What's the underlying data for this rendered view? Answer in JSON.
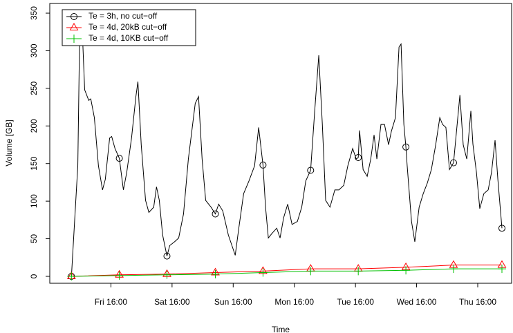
{
  "chart_data": {
    "type": "line",
    "xlabel": "Time",
    "ylabel": "Volume [GB]",
    "xlim": [
      0,
      181.3
    ],
    "ylim": [
      -9.2,
      362.9
    ],
    "xticks": [
      {
        "value": 24,
        "label": "Fri 16:00"
      },
      {
        "value": 48,
        "label": "Sat 16:00"
      },
      {
        "value": 72,
        "label": "Sun 16:00"
      },
      {
        "value": 96,
        "label": "Mon 16:00"
      },
      {
        "value": 120,
        "label": "Tue 16:00"
      },
      {
        "value": 144,
        "label": "Wed 16:00"
      },
      {
        "value": 168,
        "label": "Thu 16:00"
      }
    ],
    "yticks": [
      0,
      50,
      100,
      150,
      200,
      250,
      300,
      350
    ],
    "legend": "topleft",
    "series": [
      {
        "name": "Te = 3h, no cut−off",
        "color": "#000000",
        "marker": "circle",
        "x": [
          8.5,
          11.0,
          11.8,
          12.6,
          13.7,
          15.3,
          16.1,
          17.5,
          19.1,
          20.7,
          21.8,
          23.5,
          24.3,
          25.6,
          27.3,
          28.9,
          30.2,
          32.1,
          33.8,
          34.6,
          35.9,
          37.6,
          38.9,
          40.8,
          41.9,
          43.0,
          44.3,
          46.0,
          47.1,
          49.0,
          50.6,
          52.5,
          54.4,
          57.1,
          58.4,
          59.8,
          61.2,
          63.3,
          65.0,
          66.3,
          67.9,
          70.1,
          72.8,
          74.2,
          76.1,
          78.2,
          80.4,
          82.0,
          83.7,
          84.7,
          85.8,
          87.2,
          89.1,
          90.4,
          91.8,
          93.4,
          95.1,
          97.2,
          98.9,
          100.5,
          102.4,
          104.0,
          105.6,
          107.0,
          108.3,
          110.0,
          111.9,
          113.5,
          115.4,
          117.0,
          118.9,
          120.3,
          121.1,
          121.6,
          123.0,
          124.6,
          126.0,
          127.3,
          128.4,
          130.0,
          131.4,
          133.0,
          134.1,
          135.7,
          137.1,
          137.9,
          139.0,
          139.8,
          140.3,
          142.0,
          143.3,
          145.0,
          146.6,
          148.2,
          149.8,
          151.5,
          153.1,
          154.2,
          155.5,
          156.9,
          158.5,
          161.0,
          162.3,
          163.7,
          165.3,
          166.1,
          167.5,
          168.8,
          170.4,
          172.1,
          173.4,
          174.8,
          175.9,
          177.5
        ],
        "values": [
          0,
          147,
          340,
          340,
          248,
          234,
          236,
          211,
          147,
          115,
          129,
          184,
          186,
          170,
          157,
          115,
          138,
          184,
          239,
          259,
          175,
          101,
          85,
          92,
          119,
          101,
          55,
          27,
          41,
          46,
          51,
          83,
          156,
          230,
          239,
          156,
          101,
          92,
          83,
          96,
          87,
          55,
          28,
          64,
          110,
          127,
          147,
          198,
          148,
          92,
          51,
          57,
          64,
          51,
          78,
          96,
          69,
          73,
          92,
          127,
          141,
          220,
          294,
          202,
          101,
          92,
          115,
          115,
          121,
          147,
          170,
          156,
          158,
          194,
          142,
          133,
          156,
          188,
          156,
          202,
          202,
          175,
          193,
          211,
          305,
          309,
          202,
          172,
          147,
          73,
          46,
          92,
          110,
          124,
          142,
          175,
          211,
          202,
          198,
          142,
          151,
          241,
          175,
          156,
          220,
          176,
          138,
          90,
          110,
          115,
          138,
          181,
          129,
          64
        ]
      },
      {
        "name": "Te = 4d, 20kB cut−off",
        "color": "#ff0000",
        "marker": "triangle",
        "x": [
          8.5,
          27.3,
          46.0,
          65.0,
          83.7,
          102.4,
          121.1,
          139.8,
          158.5,
          177.5
        ],
        "values": [
          0,
          2,
          3,
          5,
          7,
          10,
          10,
          12,
          15,
          15
        ]
      },
      {
        "name": "Te = 4d, 10KB cut−off",
        "color": "#00c000",
        "marker": "plus",
        "x": [
          8.5,
          27.3,
          46.0,
          65.0,
          83.7,
          102.4,
          121.1,
          139.8,
          158.5,
          177.5
        ],
        "values": [
          0,
          1,
          2,
          3,
          5,
          7,
          7,
          8,
          10,
          10
        ]
      }
    ]
  }
}
